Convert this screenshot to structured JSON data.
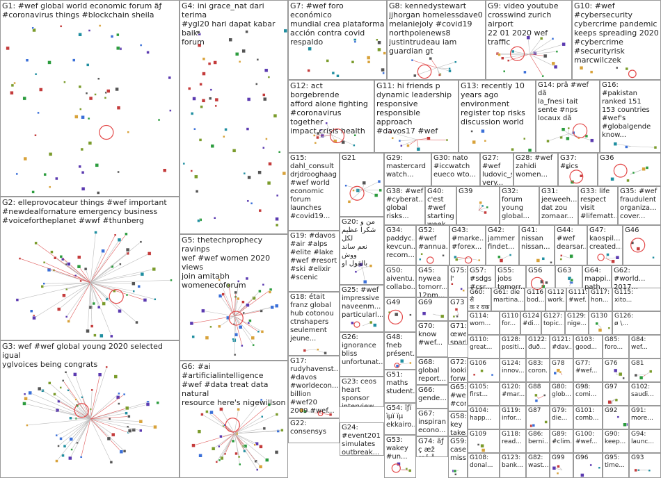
{
  "title": "",
  "groups": [
    {
      "id": "G1",
      "label": "G1: #wef global world economic forum ãƒ\n#coronavirus things #blockchain sheila",
      "fs": 11
    },
    {
      "id": "G2",
      "label": "G2: elleprovocateur things #wef important\n#newdealfornature emergency business\n#voicefortheplanet #wwf #thunberg",
      "fs": 11
    },
    {
      "id": "G3",
      "label": "G3: wef #wef global young 2020 selected igual\nyglvoices being congrats",
      "fs": 11
    },
    {
      "id": "G4",
      "label": "G4: ini grace_nat dari terima\n#ygl20 hari dapat kabar baik\nforum",
      "fs": 11
    },
    {
      "id": "G5",
      "label": "G5: thetechprophecy ravinps\nwef #wef women 2020 views\njoin amitabh\nwomenecoforum",
      "fs": 11
    },
    {
      "id": "G6",
      "label": "G6: #ai #artificialintelligence\n#wef #data treat data natural\nresource here's nigewillson",
      "fs": 11
    },
    {
      "id": "G7",
      "label": "G7: #wef foro económico\nmundial crea plataforma\nacción contra covid\nrespaldo",
      "fs": 11
    },
    {
      "id": "G8",
      "label": "G8: kennedystewart\njjhorgan homelessdave0\nmelaniejoly #covid19\nnorthpolenews8\njustintrudeau iam\nguardian gt",
      "fs": 11
    },
    {
      "id": "G9",
      "label": "G9: video youtube\ncrosswind zurich airport\n22 01 2020 wef traffic",
      "fs": 11
    },
    {
      "id": "G10",
      "label": "G10: #wef\n#cybersecurity\ncybercrime pandemic\nkeeps spreading 2020\n#cybercrime\n#securityrisk\nmarcwilczek",
      "fs": 11
    },
    {
      "id": "G12",
      "label": "G12: act borgebrende\nafford alone fighting\n#coronavirus together\nimpact crisis health",
      "fs": 11
    },
    {
      "id": "G11",
      "label": "G11: hi friends p\ndynamic leadership\nresponsive\nresponsible approach\n#davos17 #wef",
      "fs": 11
    },
    {
      "id": "G13",
      "label": "G13: recently 10\nyears ago\nenvironment\nregister top risks\ndiscussion world",
      "fs": 11
    },
    {
      "id": "G14",
      "label": "G14: prã #wef dã\nla_fnesi tait\nsente #nps\nlocaux dã",
      "fs": 10
    },
    {
      "id": "G16",
      "label": "G16:\n#pakistan\nranked 151\n153 countries\n#wef's\n#globalgende\nknow...",
      "fs": 10
    },
    {
      "id": "G15",
      "label": "G15:\ndahl_consult\ndrjdrooghaag\n#wef world\neconomic\nforum\nlaunches\n#covid19...",
      "fs": 10
    },
    {
      "id": "G21",
      "label": "G21",
      "fs": 10
    },
    {
      "id": "G29",
      "label": "G29:\nmastercard\nwatch...",
      "fs": 10
    },
    {
      "id": "G30",
      "label": "G30: nato\n#iccwatch\neueco wto...",
      "fs": 10
    },
    {
      "id": "G27",
      "label": "G27: #wef\nludovic_su...\nvery...",
      "fs": 10
    },
    {
      "id": "G28",
      "label": "G28: #wef\nzahidi\nwomen...",
      "fs": 10
    },
    {
      "id": "G37",
      "label": "G37: #rics",
      "fs": 10
    },
    {
      "id": "G36",
      "label": "G36",
      "fs": 10
    },
    {
      "id": "G38",
      "label": "G38: #wef\n#cyberat...\nglobal\nrisks...",
      "fs": 10
    },
    {
      "id": "G40",
      "label": "G40: c'est\n#wef\nstarting\nweek...",
      "fs": 10
    },
    {
      "id": "G39",
      "label": "G39",
      "fs": 10
    },
    {
      "id": "G32",
      "label": "G32:\nforum\nyoung\nglobal...",
      "fs": 10
    },
    {
      "id": "G31",
      "label": "G31:\njeeweeh...\ndat zou\nzomaar...",
      "fs": 10
    },
    {
      "id": "G33",
      "label": "G33: life\nrespect\nvisit\n#lifematt...",
      "fs": 10
    },
    {
      "id": "G35",
      "label": "G35: #wef\nfraudulent\norganiza...\ncover...",
      "fs": 10
    },
    {
      "id": "G19",
      "label": "G19: #davos\n#air #alps\n#elite #lake\n#wef #resort\n#ski #elixir\n#scenic",
      "fs": 10
    },
    {
      "id": "G20",
      "label": "G20: من و\nشكرا عظيم لكل\nنعم ساند ووش\nبالقول او",
      "fs": 10
    },
    {
      "id": "G34",
      "label": "G34:\npaddyc...\nkevcun...\nrecom...",
      "fs": 10
    },
    {
      "id": "G52",
      "label": "G52:\n#wef\n#annua...",
      "fs": 10
    },
    {
      "id": "G43",
      "label": "G43:\n#marke...\n#forex...",
      "fs": 10
    },
    {
      "id": "G42",
      "label": "G42:\njammer\nfindet...",
      "fs": 10
    },
    {
      "id": "G41",
      "label": "G41:\nnissan\nnissan...",
      "fs": 10
    },
    {
      "id": "G44",
      "label": "G44:\n#wef\ndearsar...",
      "fs": 10
    },
    {
      "id": "G47",
      "label": "G47:\nkaospil...\ncreated...",
      "fs": 10
    },
    {
      "id": "G46",
      "label": "G46",
      "fs": 10
    },
    {
      "id": "G50",
      "label": "G50:\naiventu...\ncollabo...",
      "fs": 10
    },
    {
      "id": "G45",
      "label": "G45:\nnywea\ntomorr...\n12pm...",
      "fs": 10
    },
    {
      "id": "G75",
      "label": "G75: l'",
      "fs": 10
    },
    {
      "id": "G57",
      "label": "G57:\n#sdgs\n#csr...",
      "fs": 10
    },
    {
      "id": "G55",
      "label": "G55:\njobs\ntomorr...",
      "fs": 10
    },
    {
      "id": "G56",
      "label": "G56",
      "fs": 10
    },
    {
      "id": "G63",
      "label": "G63",
      "fs": 10
    },
    {
      "id": "G64",
      "label": "G64:\nmappi...\npath...",
      "fs": 10
    },
    {
      "id": "G62",
      "label": "G62:\n#world...\n2017...",
      "fs": 10
    },
    {
      "id": "G18",
      "label": "G18: était\nfranz global\nhub cotonou\nctnshapers\nseulement\njeune...",
      "fs": 10
    },
    {
      "id": "G25",
      "label": "G25: #wef\nimpressive\nnaveenm...\nparticularl...",
      "fs": 10
    },
    {
      "id": "G49",
      "label": "G49",
      "fs": 10
    },
    {
      "id": "G69",
      "label": "G69",
      "fs": 10
    },
    {
      "id": "G73",
      "label": "G73",
      "fs": 10
    },
    {
      "id": "G60",
      "label": "G60: से\nक र यक",
      "fs": 9
    },
    {
      "id": "G61",
      "label": "G61: die\nmartina...",
      "fs": 9
    },
    {
      "id": "G116",
      "label": "G116:\nbod...",
      "fs": 9
    },
    {
      "id": "G112",
      "label": "G112:\nwork...",
      "fs": 9
    },
    {
      "id": "G111",
      "label": "G111:\n#wef...",
      "fs": 9
    },
    {
      "id": "G117",
      "label": "G117:\nhon...",
      "fs": 9
    },
    {
      "id": "G115",
      "label": "G115:\nxito...",
      "fs": 9
    },
    {
      "id": "G26",
      "label": "G26:\nignorance\nbliss\nunfortunat...",
      "fs": 10
    },
    {
      "id": "G71",
      "label": "G71:\nœwe\nsparki...",
      "fs": 10
    },
    {
      "id": "G114",
      "label": "G114:\nwom...",
      "fs": 9
    },
    {
      "id": "G110",
      "label": "G110:\nfor...",
      "fs": 9
    },
    {
      "id": "G124",
      "label": "G124:\n#di...",
      "fs": 9
    },
    {
      "id": "G127",
      "label": "G127:\ntopic...",
      "fs": 9
    },
    {
      "id": "G129",
      "label": "G129:\nnige...",
      "fs": 9
    },
    {
      "id": "G130",
      "label": "G130",
      "fs": 9
    },
    {
      "id": "G126",
      "label": "G126:\nø \\...",
      "fs": 9
    },
    {
      "id": "G17",
      "label": "G17:\nrudyhavenst...\n#davos\n#worldecon...\nbillion #wef20\n2009 #wef...",
      "fs": 10
    },
    {
      "id": "G48",
      "label": "G48:\nfneb\nprésent...",
      "fs": 10
    },
    {
      "id": "G70",
      "label": "G70:\nknow\n#wef...",
      "fs": 10
    },
    {
      "id": "G110b",
      "label": "G110:\ngreat...",
      "fs": 9
    },
    {
      "id": "G128",
      "label": "G128:\npositi...",
      "fs": 9
    },
    {
      "id": "G122",
      "label": "G122:\nđuð...",
      "fs": 9
    },
    {
      "id": "G121",
      "label": "G121:\n#dav...",
      "fs": 9
    },
    {
      "id": "G103",
      "label": "G103:\ngood...",
      "fs": 9
    },
    {
      "id": "G85",
      "label": "G85:\nforo...",
      "fs": 9
    },
    {
      "id": "G84",
      "label": "G84:\nwef...",
      "fs": 9
    },
    {
      "id": "G51",
      "label": "G51:\nmaths\nstudent...",
      "fs": 10
    },
    {
      "id": "G68",
      "label": "G68:\nglobal\nreport...",
      "fs": 10
    },
    {
      "id": "G72",
      "label": "G72:\nlooking\nforwar...",
      "fs": 10
    },
    {
      "id": "G106",
      "label": "G106",
      "fs": 9
    },
    {
      "id": "G124b",
      "label": "G124:\ninnov...",
      "fs": 9
    },
    {
      "id": "G83",
      "label": "G83:\ncoron...",
      "fs": 9
    },
    {
      "id": "G78",
      "label": "G78",
      "fs": 9
    },
    {
      "id": "G77",
      "label": "G77:\n#wef...",
      "fs": 9
    },
    {
      "id": "G76",
      "label": "G76",
      "fs": 9
    },
    {
      "id": "G81",
      "label": "G81",
      "fs": 9
    },
    {
      "id": "G23",
      "label": "G23: ceos\nheart\nsponsor\ninterview...",
      "fs": 10
    },
    {
      "id": "G66",
      "label": "G66:\ngende...",
      "fs": 10
    },
    {
      "id": "G65",
      "label": "G65:\n#wef\n#coro...",
      "fs": 10
    },
    {
      "id": "G105",
      "label": "G105:\nfirst...",
      "fs": 9
    },
    {
      "id": "G120",
      "label": "G120:\n#mar...",
      "fs": 9
    },
    {
      "id": "G88",
      "label": "G88",
      "fs": 9
    },
    {
      "id": "G80",
      "label": "G80:\nglob...",
      "fs": 9
    },
    {
      "id": "G98",
      "label": "G98:\ncomi...",
      "fs": 9
    },
    {
      "id": "G97",
      "label": "G97",
      "fs": 9
    },
    {
      "id": "G102",
      "label": "G102:\nsaudi...",
      "fs": 9
    },
    {
      "id": "G22",
      "label": "G22:\nconsensys",
      "fs": 10
    },
    {
      "id": "G54",
      "label": "G54: ïƒï\nïµï ïµ\nekkairo...",
      "fs": 10
    },
    {
      "id": "G67",
      "label": "G67:\ninspiran...\necono...",
      "fs": 10
    },
    {
      "id": "G104",
      "label": "G104:\nhapp...",
      "fs": 9
    },
    {
      "id": "G119",
      "label": "G119:\ninfor...",
      "fs": 9
    },
    {
      "id": "G87",
      "label": "G87",
      "fs": 9
    },
    {
      "id": "G79",
      "label": "G79:\ndie...",
      "fs": 9
    },
    {
      "id": "G101",
      "label": "G101:\ncomb...",
      "fs": 9
    },
    {
      "id": "G92",
      "label": "G92",
      "fs": 9
    },
    {
      "id": "G91",
      "label": "G91:\nmore...",
      "fs": 9
    },
    {
      "id": "G58",
      "label": "G58:\nkey\ntakea...",
      "fs": 10
    },
    {
      "id": "G24",
      "label": "G24:\n#event201\nsimulates\noutbreak...",
      "fs": 10
    },
    {
      "id": "G109",
      "label": "G109",
      "fs": 9
    },
    {
      "id": "G118",
      "label": "G118:\nread...",
      "fs": 9
    },
    {
      "id": "G86",
      "label": "G86:\nberni...",
      "fs": 9
    },
    {
      "id": "G89",
      "label": "G89:\n#clim...",
      "fs": 9
    },
    {
      "id": "G100",
      "label": "G100:\n#wef...",
      "fs": 9
    },
    {
      "id": "G90",
      "label": "G90:\nkeep...",
      "fs": 9
    },
    {
      "id": "G94",
      "label": "G94:\nlaunc...",
      "fs": 9
    },
    {
      "id": "G53",
      "label": "G53:\nwakey\n#un...",
      "fs": 10
    },
    {
      "id": "G74",
      "label": "G74: ãƒ\nç æž\næš å š...",
      "fs": 10
    },
    {
      "id": "G59",
      "label": "G59:\ncase\nmisse...",
      "fs": 10
    },
    {
      "id": "G108",
      "label": "G108:\ndonal...",
      "fs": 9
    },
    {
      "id": "G123",
      "label": "G123:\nbank...",
      "fs": 9
    },
    {
      "id": "G82",
      "label": "G82:\nwast...",
      "fs": 9
    },
    {
      "id": "G99",
      "label": "G99",
      "fs": 9
    },
    {
      "id": "G96",
      "label": "G96",
      "fs": 9
    },
    {
      "id": "G95",
      "label": "G95:\ntime...",
      "fs": 9
    },
    {
      "id": "G93",
      "label": "G93",
      "fs": 9
    }
  ]
}
